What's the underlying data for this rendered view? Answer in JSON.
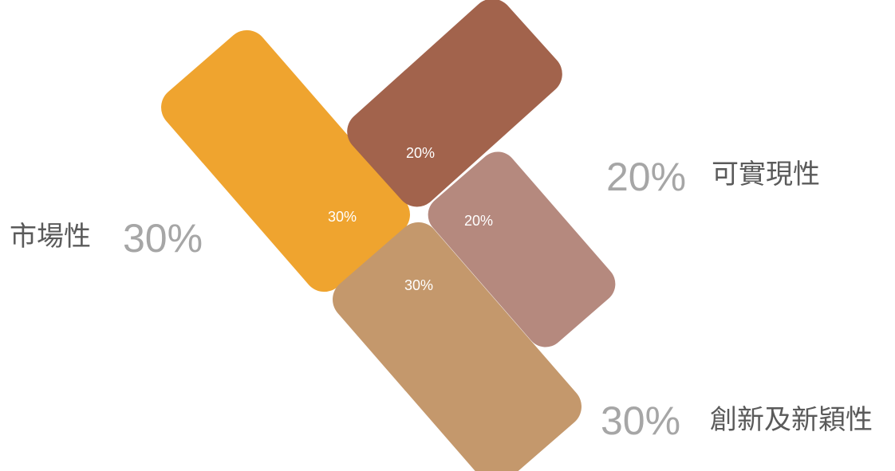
{
  "segments": [
    {
      "id": "market",
      "label": "市場性",
      "percent_label": "30%",
      "value": 30,
      "color": "#EFA42F"
    },
    {
      "id": "feasibility",
      "label": "可實現性",
      "percent_label": "20%",
      "value": 20,
      "color": "#A2634C"
    },
    {
      "id": "feasibility-alt",
      "label": "",
      "percent_label": "20%",
      "value": 20,
      "color": "#B5897E"
    },
    {
      "id": "innovation",
      "label": "創新及新穎性",
      "percent_label": "30%",
      "value": 30,
      "color": "#C4986C"
    }
  ],
  "legend": {
    "market": {
      "label": "市場性",
      "percent": "30%"
    },
    "feasibility": {
      "label": "可實現性",
      "percent": "20%"
    },
    "innovation": {
      "label": "創新及新穎性",
      "percent": "30%"
    }
  }
}
